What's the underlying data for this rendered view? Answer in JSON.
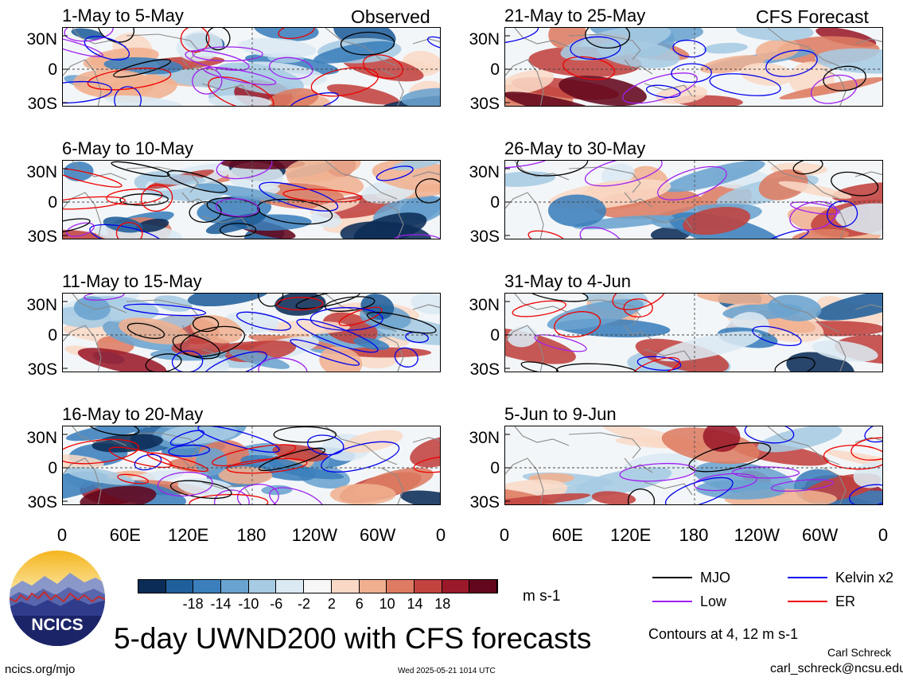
{
  "chart_data": {
    "type": "heatmap",
    "title": "5-day UWND200 with CFS forecasts",
    "left_column_label": "Observed",
    "right_column_label": "CFS Forecast",
    "panels": [
      {
        "column": "left",
        "title": "1-May to 5-May"
      },
      {
        "column": "left",
        "title": "6-May to 10-May"
      },
      {
        "column": "left",
        "title": "11-May to 15-May"
      },
      {
        "column": "left",
        "title": "16-May to 20-May"
      },
      {
        "column": "right",
        "title": "21-May to 25-May"
      },
      {
        "column": "right",
        "title": "26-May to 30-May"
      },
      {
        "column": "right",
        "title": "31-May to 4-Jun"
      },
      {
        "column": "right",
        "title": "5-Jun to 9-Jun"
      }
    ],
    "y_ticks": [
      "30N",
      "0",
      "30S"
    ],
    "x_ticks": [
      "0",
      "60E",
      "120E",
      "180",
      "120W",
      "60W",
      "0"
    ],
    "colorbar": {
      "ticks": [
        "-18",
        "-14",
        "-10",
        "-6",
        "-2",
        "2",
        "6",
        "10",
        "14",
        "18"
      ],
      "colors": [
        "#0b2c56",
        "#1f5f9a",
        "#3b7fbc",
        "#6aa3cf",
        "#a6cbe3",
        "#dbe9f3",
        "#f7f7f7",
        "#f9d9c6",
        "#f0b08f",
        "#dd7c62",
        "#c2423f",
        "#9b1a2a",
        "#63071c"
      ],
      "units": "m s-1"
    },
    "legend": [
      {
        "label": "MJO",
        "color": "#000000"
      },
      {
        "label": "Kelvin x2",
        "color": "#0000ee"
      },
      {
        "label": "Low",
        "color": "#a020f0"
      },
      {
        "label": "ER",
        "color": "#ee0000"
      }
    ],
    "contour_note": "Contours at 4, 12 m s-1"
  },
  "footer": {
    "site": "ncics.org/mjo",
    "timestamp": "Wed 2025-05-21 1014 UTC",
    "author": "Carl Schreck",
    "email": "carl_schreck@ncsu.edu"
  },
  "logo": {
    "text": "NCICS"
  }
}
